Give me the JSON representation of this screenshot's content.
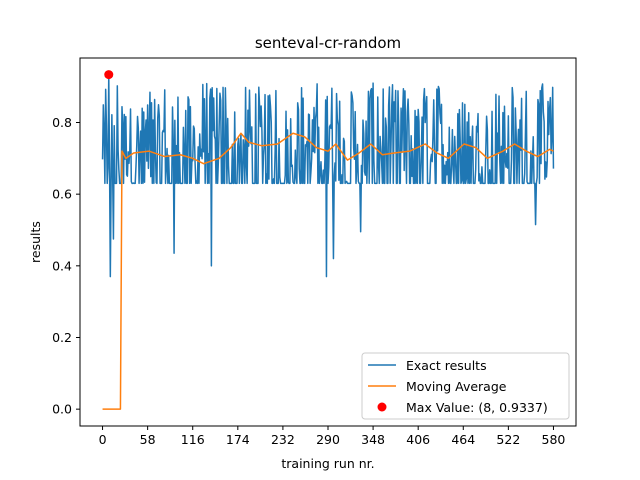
{
  "chart_data": {
    "type": "line",
    "title": "senteval-cr-random",
    "xlabel": "training run nr.",
    "ylabel": "results",
    "xlim": [
      -29,
      609
    ],
    "ylim": [
      -0.047,
      0.98
    ],
    "xticks": [
      0,
      58,
      116,
      174,
      232,
      290,
      348,
      406,
      464,
      522,
      580
    ],
    "yticks": [
      0.0,
      0.2,
      0.4,
      0.6,
      0.8
    ],
    "ytick_labels": [
      "0.0",
      "0.2",
      "0.4",
      "0.6",
      "0.8"
    ],
    "grid": false,
    "legend_position": "lower-right",
    "series": [
      {
        "name": "Exact results",
        "color": "#1f77b4",
        "x_range": [
          0,
          580
        ],
        "baseline": 0.63,
        "upper": 0.85,
        "dips": [
          [
            10,
            0.37
          ],
          [
            14,
            0.475
          ],
          [
            92,
            0.435
          ],
          [
            140,
            0.4
          ],
          [
            288,
            0.37
          ],
          [
            297,
            0.42
          ],
          [
            332,
            0.495
          ],
          [
            557,
            0.515
          ]
        ]
      },
      {
        "name": "Moving Average",
        "color": "#ff7f0e",
        "points": [
          [
            0,
            0.0
          ],
          [
            23,
            0.0
          ],
          [
            25,
            0.72
          ],
          [
            30,
            0.7
          ],
          [
            40,
            0.715
          ],
          [
            60,
            0.72
          ],
          [
            80,
            0.705
          ],
          [
            100,
            0.71
          ],
          [
            116,
            0.7
          ],
          [
            130,
            0.685
          ],
          [
            150,
            0.7
          ],
          [
            165,
            0.73
          ],
          [
            178,
            0.77
          ],
          [
            188,
            0.745
          ],
          [
            205,
            0.735
          ],
          [
            225,
            0.74
          ],
          [
            245,
            0.77
          ],
          [
            260,
            0.76
          ],
          [
            275,
            0.73
          ],
          [
            290,
            0.72
          ],
          [
            300,
            0.74
          ],
          [
            315,
            0.695
          ],
          [
            330,
            0.715
          ],
          [
            345,
            0.74
          ],
          [
            360,
            0.71
          ],
          [
            375,
            0.715
          ],
          [
            395,
            0.72
          ],
          [
            415,
            0.74
          ],
          [
            430,
            0.715
          ],
          [
            445,
            0.7
          ],
          [
            465,
            0.74
          ],
          [
            480,
            0.73
          ],
          [
            495,
            0.7
          ],
          [
            515,
            0.72
          ],
          [
            530,
            0.74
          ],
          [
            545,
            0.72
          ],
          [
            560,
            0.705
          ],
          [
            575,
            0.725
          ],
          [
            580,
            0.72
          ]
        ]
      },
      {
        "name": "Max Value: (8, 0.9337)",
        "color": "#ff0000",
        "type": "scatter",
        "points": [
          [
            8,
            0.9337
          ]
        ]
      }
    ]
  }
}
